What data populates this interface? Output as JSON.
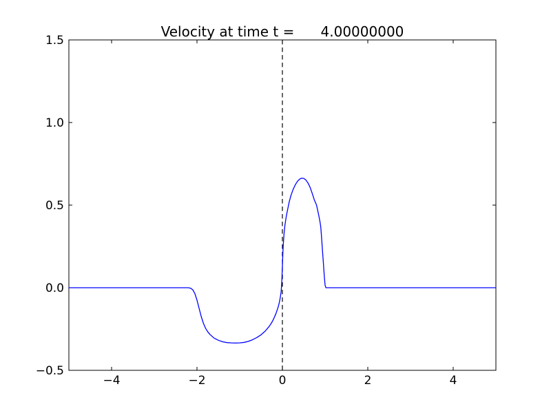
{
  "figure": {
    "background": "#ffffff",
    "axis_color": "#000000"
  },
  "chart_data": {
    "type": "line",
    "title": "Velocity at time t =      4.00000000",
    "xlabel": "",
    "ylabel": "",
    "xlim": [
      -5,
      5
    ],
    "ylim": [
      -0.5,
      1.5
    ],
    "grid": false,
    "legend_position": "none",
    "xtick_values": [
      -4,
      -2,
      0,
      2,
      4
    ],
    "xtick_labels": [
      "−4",
      "−2",
      "0",
      "2",
      "4"
    ],
    "ytick_values": [
      -0.5,
      0.0,
      0.5,
      1.0,
      1.5
    ],
    "ytick_labels": [
      "−0.5",
      "0.0",
      "0.5",
      "1.0",
      "1.5"
    ],
    "vline": {
      "x": 0,
      "color": "#000000",
      "style": "dashed",
      "dash": [
        6.5,
        4.5
      ]
    },
    "series": [
      {
        "name": "velocity",
        "color": "#0000ff",
        "x": [
          -5.0,
          -2.3,
          -2.2,
          -2.15,
          -2.1,
          -2.05,
          -2.0,
          -1.95,
          -1.9,
          -1.85,
          -1.8,
          -1.75,
          -1.7,
          -1.6,
          -1.5,
          -1.4,
          -1.3,
          -1.2,
          -1.1,
          -1.0,
          -0.9,
          -0.8,
          -0.7,
          -0.6,
          -0.5,
          -0.4,
          -0.3,
          -0.25,
          -0.2,
          -0.15,
          -0.1,
          -0.07,
          -0.05,
          -0.03,
          -0.02,
          -0.01,
          0.0,
          0.01,
          0.02,
          0.04,
          0.06,
          0.09,
          0.12,
          0.16,
          0.2,
          0.25,
          0.3,
          0.35,
          0.4,
          0.45,
          0.5,
          0.55,
          0.6,
          0.65,
          0.7,
          0.75,
          0.8,
          0.85,
          0.88,
          0.9,
          0.92,
          0.94,
          0.96,
          0.98,
          1.0,
          1.02,
          1.1,
          5.0
        ],
        "y": [
          0,
          0,
          0,
          -0.003,
          -0.012,
          -0.035,
          -0.075,
          -0.125,
          -0.175,
          -0.215,
          -0.245,
          -0.266,
          -0.282,
          -0.305,
          -0.318,
          -0.327,
          -0.332,
          -0.334,
          -0.335,
          -0.334,
          -0.331,
          -0.325,
          -0.315,
          -0.302,
          -0.285,
          -0.262,
          -0.231,
          -0.211,
          -0.186,
          -0.156,
          -0.118,
          -0.088,
          -0.06,
          -0.025,
          0.01,
          0.06,
          0.13,
          0.2,
          0.26,
          0.33,
          0.38,
          0.43,
          0.47,
          0.52,
          0.558,
          0.594,
          0.622,
          0.643,
          0.657,
          0.663,
          0.662,
          0.652,
          0.634,
          0.607,
          0.57,
          0.53,
          0.5,
          0.44,
          0.4,
          0.365,
          0.295,
          0.22,
          0.15,
          0.075,
          0.015,
          0.0,
          0.0,
          0.0
        ]
      }
    ],
    "annotations": {
      "curve_min": {
        "x": -1.1,
        "y": -0.335
      },
      "curve_max": {
        "x": 0.45,
        "y": 0.663
      }
    }
  }
}
